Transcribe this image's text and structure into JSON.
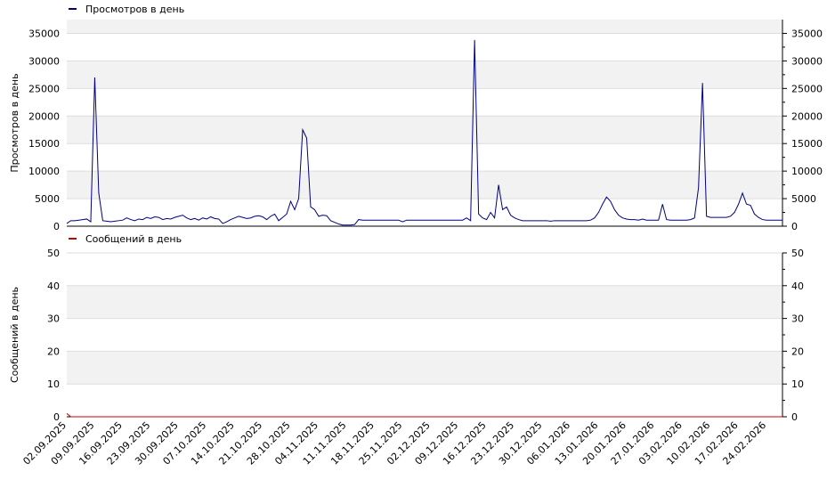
{
  "chart_data": [
    {
      "type": "line",
      "legend": "Просмотров в день",
      "ylabel": "Просмотров в день",
      "color": "#000080",
      "ylim": [
        0,
        37500
      ],
      "yticks": [
        0,
        5000,
        10000,
        15000,
        20000,
        25000,
        30000,
        35000
      ],
      "grid": true,
      "values": [
        500,
        1000,
        1000,
        1100,
        1200,
        1300,
        800,
        27000,
        6000,
        1000,
        900,
        800,
        900,
        1000,
        1100,
        1500,
        1200,
        1000,
        1300,
        1200,
        1600,
        1400,
        1700,
        1600,
        1200,
        1400,
        1300,
        1600,
        1800,
        2000,
        1500,
        1200,
        1400,
        1100,
        1500,
        1300,
        1700,
        1400,
        1300,
        500,
        800,
        1200,
        1500,
        1800,
        1600,
        1400,
        1500,
        1800,
        1900,
        1700,
        1200,
        1800,
        2200,
        1000,
        1600,
        2200,
        4500,
        3000,
        5000,
        17500,
        16000,
        3500,
        3000,
        1800,
        2000,
        1900,
        1000,
        700,
        400,
        200,
        200,
        200,
        300,
        1200,
        1100,
        1100,
        1100,
        1100,
        1100,
        1100,
        1100,
        1100,
        1100,
        1100,
        800,
        1100,
        1100,
        1100,
        1100,
        1100,
        1100,
        1100,
        1100,
        1100,
        1100,
        1100,
        1100,
        1100,
        1100,
        1100,
        1500,
        1000,
        33800,
        2200,
        1500,
        1200,
        2500,
        1500,
        7500,
        3000,
        3500,
        2000,
        1500,
        1200,
        1000,
        1000,
        1000,
        1000,
        1000,
        1000,
        1000,
        900,
        1000,
        1000,
        1000,
        1000,
        1000,
        1000,
        1000,
        1000,
        1000,
        1100,
        1500,
        2500,
        4000,
        5300,
        4500,
        3000,
        2000,
        1500,
        1300,
        1200,
        1200,
        1100,
        1300,
        1100,
        1100,
        1100,
        1100,
        4000,
        1200,
        1100,
        1100,
        1100,
        1100,
        1100,
        1200,
        1500,
        7000,
        26000,
        1800,
        1600,
        1600,
        1600,
        1600,
        1600,
        1800,
        2500,
        4000,
        6000,
        4000,
        3800,
        2200,
        1600,
        1200,
        1100,
        1100,
        1100,
        1100,
        1100
      ]
    },
    {
      "type": "line",
      "legend": "Сообщений в день",
      "ylabel": "Сообщений в день",
      "color": "#cc0000",
      "ylim": [
        0,
        50
      ],
      "yticks": [
        0,
        10,
        20,
        30,
        40,
        50
      ],
      "grid": true,
      "categories": [
        "02.09.2025",
        null,
        null,
        null,
        null,
        null,
        null,
        "09.09.2025",
        null,
        null,
        null,
        null,
        null,
        null,
        "16.09.2025",
        null,
        null,
        null,
        null,
        null,
        null,
        "23.09.2025",
        null,
        null,
        null,
        null,
        null,
        null,
        "30.09.2025",
        null,
        null,
        null,
        null,
        null,
        null,
        "07.10.2025",
        null,
        null,
        null,
        null,
        null,
        null,
        "14.10.2025",
        null,
        null,
        null,
        null,
        null,
        null,
        "21.10.2025",
        null,
        null,
        null,
        null,
        null,
        null,
        "28.10.2025",
        null,
        null,
        null,
        null,
        null,
        null,
        "04.11.2025",
        null,
        null,
        null,
        null,
        null,
        null,
        "11.11.2025",
        null,
        null,
        null,
        null,
        null,
        null,
        "18.11.2025",
        null,
        null,
        null,
        null,
        null,
        null,
        "25.11.2025",
        null,
        null,
        null,
        null,
        null,
        null,
        "02.12.2025",
        null,
        null,
        null,
        null,
        null,
        null,
        "09.12.2025",
        null,
        null,
        null,
        null,
        null,
        null,
        "16.12.2025",
        null,
        null,
        null,
        null,
        null,
        null,
        "23.12.2025",
        null,
        null,
        null,
        null,
        null,
        null,
        "30.12.2025",
        null,
        null,
        null,
        null,
        null,
        null,
        "06.01.2026",
        null,
        null,
        null,
        null,
        null,
        null,
        "13.01.2026",
        null,
        null,
        null,
        null,
        null,
        null,
        "20.01.2026",
        null,
        null,
        null,
        null,
        null,
        null,
        "27.01.2026",
        null,
        null,
        null,
        null,
        null,
        null,
        "03.02.2026",
        null,
        null,
        null,
        null,
        null,
        null,
        "10.02.2026",
        null,
        null,
        null,
        null,
        null,
        null,
        "17.02.2026",
        null,
        null,
        null,
        null,
        null,
        null,
        "24.02.2026",
        null,
        null,
        null,
        null
      ],
      "values": [
        1,
        0,
        0,
        0,
        0,
        0,
        0,
        0,
        0,
        0,
        0,
        0,
        0,
        0,
        0,
        0,
        0,
        0,
        0,
        0,
        0,
        0,
        0,
        0,
        0,
        0,
        0,
        0,
        0,
        0,
        0,
        0,
        0,
        0,
        0,
        0,
        0,
        0,
        0,
        0,
        0,
        0,
        0,
        0,
        0,
        0,
        0,
        0,
        0,
        0,
        0,
        0,
        0,
        0,
        0,
        0,
        0,
        0,
        0,
        0,
        0,
        0,
        0,
        0,
        0,
        0,
        0,
        0,
        0,
        0,
        0,
        0,
        0,
        0,
        0,
        0,
        0,
        0,
        0,
        0,
        0,
        0,
        0,
        0,
        0,
        0,
        0,
        0,
        0,
        0,
        0,
        0,
        0,
        0,
        0,
        0,
        0,
        0,
        0,
        0,
        0,
        0,
        0,
        0,
        0,
        0,
        0,
        0,
        0,
        0,
        0,
        0,
        0,
        0,
        0,
        0,
        0,
        0,
        0,
        0,
        0,
        0,
        0,
        0,
        0,
        0,
        0,
        0,
        0,
        0,
        0,
        0,
        0,
        0,
        0,
        0,
        0,
        0,
        0,
        0,
        0,
        0,
        0,
        0,
        0,
        0,
        0,
        0,
        0,
        0,
        0,
        0,
        0,
        0,
        0,
        0,
        0,
        0,
        0,
        0,
        0,
        0,
        0,
        0,
        0,
        0,
        0,
        0,
        0,
        0,
        0,
        0,
        0,
        0,
        0,
        0,
        0,
        0,
        0,
        0
      ]
    }
  ]
}
